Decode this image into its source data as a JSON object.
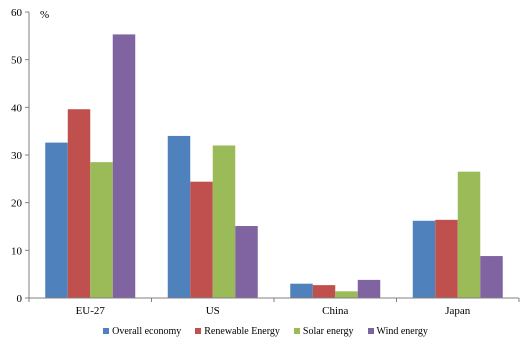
{
  "chart_data": {
    "type": "bar",
    "unit_label": "%",
    "categories": [
      "EU-27",
      "US",
      "China",
      "Japan"
    ],
    "ylim": [
      0,
      60
    ],
    "yticks": [
      0,
      10,
      20,
      30,
      40,
      50,
      60
    ],
    "grid": false,
    "legend_position": "bottom",
    "series": [
      {
        "name": "Overall economy",
        "color": "#4f81bd",
        "values": [
          32.6,
          34.0,
          3.0,
          16.2
        ]
      },
      {
        "name": "Renewable Energy",
        "color": "#c0504d",
        "values": [
          39.6,
          24.4,
          2.7,
          16.4
        ]
      },
      {
        "name": "Solar energy",
        "color": "#9bbb59",
        "values": [
          28.5,
          32.0,
          1.4,
          26.5
        ]
      },
      {
        "name": "Wind energy",
        "color": "#8064a2",
        "values": [
          55.3,
          15.1,
          3.8,
          8.8
        ]
      }
    ]
  }
}
